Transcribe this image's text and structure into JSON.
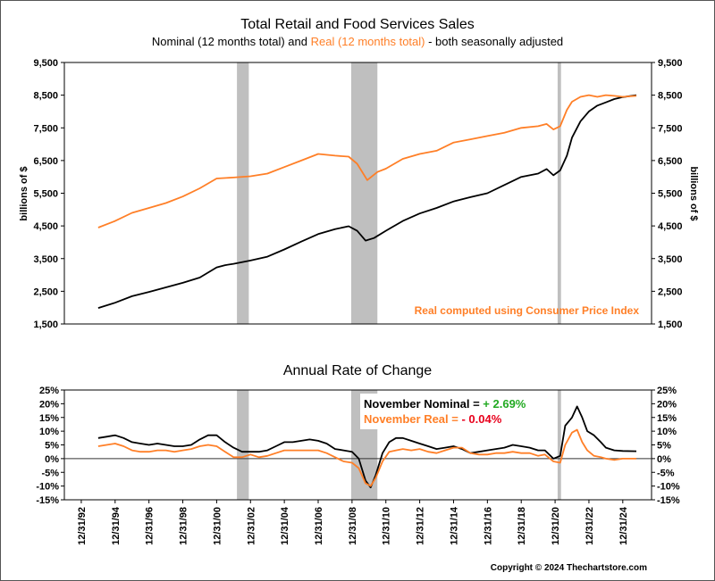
{
  "chart_data": [
    {
      "type": "line",
      "title": "Total Retail and Food Services Sales",
      "subtitle_parts": [
        {
          "text": "Nominal (12 months total) and ",
          "color": "#000000"
        },
        {
          "text": "Real (12 months total)",
          "color": "#ff7f27"
        },
        {
          "text": " - both seasonally adjusted",
          "color": "#000000"
        }
      ],
      "ylabel_left": "billions of $",
      "ylabel_right": "billions of $",
      "ylim": [
        1500,
        9500
      ],
      "yticks": [
        1500,
        2500,
        3500,
        4500,
        5500,
        6500,
        7500,
        8500,
        9500
      ],
      "ytick_labels": [
        "1,500",
        "2,500",
        "3,500",
        "4,500",
        "5,500",
        "6,500",
        "7,500",
        "8,500",
        "9,500"
      ],
      "annotation": "Real computed using Consumer Price Index",
      "grid": false,
      "series": [
        {
          "key": "nominal",
          "color": "#000000",
          "x": [
            1993.0,
            1994.0,
            1995.0,
            1996.0,
            1997.0,
            1998.0,
            1999.0,
            2000.0,
            2000.5,
            2001.0,
            2002.0,
            2003.0,
            2004.0,
            2005.0,
            2006.0,
            2007.0,
            2007.8,
            2008.3,
            2008.8,
            2009.3,
            2010.0,
            2011.0,
            2012.0,
            2013.0,
            2014.0,
            2015.0,
            2016.0,
            2017.0,
            2018.0,
            2019.0,
            2019.5,
            2019.9,
            2020.3,
            2020.7,
            2021.0,
            2021.5,
            2022.0,
            2022.5,
            2023.0,
            2023.5,
            2024.0,
            2024.8
          ],
          "y": [
            1990,
            2150,
            2350,
            2480,
            2620,
            2760,
            2920,
            3230,
            3300,
            3340,
            3440,
            3560,
            3780,
            4020,
            4250,
            4400,
            4490,
            4350,
            4050,
            4130,
            4350,
            4650,
            4880,
            5050,
            5250,
            5380,
            5500,
            5750,
            6000,
            6100,
            6240,
            6050,
            6200,
            6650,
            7200,
            7700,
            8000,
            8180,
            8280,
            8380,
            8440,
            8500
          ]
        },
        {
          "key": "real",
          "color": "#ff7f27",
          "x": [
            1993.0,
            1994.0,
            1995.0,
            1996.0,
            1997.0,
            1998.0,
            1999.0,
            2000.0,
            2001.0,
            2002.0,
            2003.0,
            2004.0,
            2005.0,
            2006.0,
            2007.0,
            2007.8,
            2008.3,
            2008.9,
            2009.5,
            2010.0,
            2011.0,
            2012.0,
            2013.0,
            2014.0,
            2015.0,
            2016.0,
            2017.0,
            2018.0,
            2019.0,
            2019.5,
            2019.9,
            2020.3,
            2020.7,
            2021.0,
            2021.5,
            2022.0,
            2022.5,
            2023.0,
            2023.5,
            2024.0,
            2024.8
          ],
          "y": [
            4450,
            4650,
            4900,
            5050,
            5200,
            5400,
            5650,
            5950,
            5980,
            6020,
            6100,
            6300,
            6500,
            6700,
            6650,
            6620,
            6400,
            5900,
            6150,
            6250,
            6550,
            6700,
            6800,
            7050,
            7150,
            7250,
            7350,
            7500,
            7550,
            7620,
            7450,
            7550,
            8050,
            8300,
            8450,
            8500,
            8450,
            8500,
            8480,
            8450,
            8480
          ]
        }
      ]
    },
    {
      "type": "line",
      "title": "Annual Rate of Change",
      "ylim": [
        -15,
        25
      ],
      "yticks": [
        -15,
        -10,
        -5,
        0,
        5,
        10,
        15,
        20,
        25
      ],
      "ytick_labels": [
        "-15%",
        "-10%",
        "-5%",
        "0%",
        "5%",
        "10%",
        "15%",
        "20%",
        "25%"
      ],
      "xticks": [
        1992,
        1994,
        1996,
        1998,
        2000,
        2002,
        2004,
        2006,
        2008,
        2010,
        2012,
        2014,
        2016,
        2018,
        2020,
        2022,
        2024
      ],
      "xtick_labels": [
        "12/31/92",
        "12/31/94",
        "12/31/96",
        "12/31/98",
        "12/31/00",
        "12/31/02",
        "12/31/04",
        "12/31/06",
        "12/31/08",
        "12/31/10",
        "12/31/12",
        "12/31/14",
        "12/31/16",
        "12/31/18",
        "12/31/20",
        "12/31/22",
        "12/31/24"
      ],
      "legend": {
        "nominal_label": "November Nominal = ",
        "nominal_value": "+ 2.69%",
        "real_label": "November Real = ",
        "real_value": "- 0.04%",
        "nominal_value_color": "#22aa22",
        "real_value_color": "#e8001c"
      },
      "series": [
        {
          "key": "nominal",
          "color": "#000000",
          "x": [
            1993.0,
            1993.5,
            1994.0,
            1994.5,
            1995.0,
            1995.5,
            1996.0,
            1996.5,
            1997.0,
            1997.5,
            1998.0,
            1998.5,
            1999.0,
            1999.5,
            2000.0,
            2000.5,
            2001.0,
            2001.5,
            2002.0,
            2002.5,
            2003.0,
            2003.5,
            2004.0,
            2004.5,
            2005.0,
            2005.5,
            2006.0,
            2006.5,
            2007.0,
            2007.5,
            2008.0,
            2008.4,
            2008.8,
            2009.1,
            2009.4,
            2009.8,
            2010.2,
            2010.6,
            2011.0,
            2011.5,
            2012.0,
            2012.5,
            2013.0,
            2013.5,
            2014.0,
            2014.5,
            2015.0,
            2015.5,
            2016.0,
            2016.5,
            2017.0,
            2017.5,
            2018.0,
            2018.5,
            2019.0,
            2019.4,
            2019.9,
            2020.3,
            2020.6,
            2021.0,
            2021.3,
            2021.6,
            2021.9,
            2022.3,
            2022.7,
            2023.0,
            2023.5,
            2024.0,
            2024.8
          ],
          "y": [
            7.5,
            8.0,
            8.5,
            7.5,
            6.0,
            5.5,
            5.0,
            5.5,
            5.0,
            4.5,
            4.5,
            5.0,
            7.0,
            8.5,
            8.5,
            6.0,
            4.0,
            2.5,
            2.5,
            2.5,
            3.0,
            4.5,
            6.0,
            6.0,
            6.5,
            7.0,
            6.5,
            5.5,
            3.5,
            3.0,
            2.5,
            0.0,
            -8.0,
            -10.5,
            -6.0,
            2.0,
            6.0,
            7.5,
            7.5,
            6.5,
            5.5,
            4.5,
            3.5,
            4.0,
            4.5,
            3.5,
            2.0,
            2.5,
            3.0,
            3.5,
            4.0,
            5.0,
            4.5,
            4.0,
            3.0,
            3.0,
            0.0,
            1.0,
            12.0,
            15.0,
            19.0,
            15.0,
            10.0,
            8.5,
            6.0,
            4.0,
            3.0,
            2.8,
            2.7
          ]
        },
        {
          "key": "real",
          "color": "#ff7f27",
          "x": [
            1993.0,
            1993.5,
            1994.0,
            1994.5,
            1995.0,
            1995.5,
            1996.0,
            1996.5,
            1997.0,
            1997.5,
            1998.0,
            1998.5,
            1999.0,
            1999.5,
            2000.0,
            2000.5,
            2001.0,
            2001.5,
            2002.0,
            2002.5,
            2003.0,
            2003.5,
            2004.0,
            2004.5,
            2005.0,
            2005.5,
            2006.0,
            2006.5,
            2007.0,
            2007.5,
            2008.0,
            2008.4,
            2008.8,
            2009.1,
            2009.4,
            2009.8,
            2010.2,
            2010.6,
            2011.0,
            2011.5,
            2012.0,
            2012.5,
            2013.0,
            2013.5,
            2014.0,
            2014.5,
            2015.0,
            2015.5,
            2016.0,
            2016.5,
            2017.0,
            2017.5,
            2018.0,
            2018.5,
            2019.0,
            2019.4,
            2019.9,
            2020.3,
            2020.6,
            2021.0,
            2021.3,
            2021.6,
            2021.9,
            2022.3,
            2022.7,
            2023.0,
            2023.5,
            2024.0,
            2024.8
          ],
          "y": [
            4.5,
            5.0,
            5.5,
            4.5,
            3.0,
            2.5,
            2.5,
            3.0,
            3.0,
            2.5,
            3.0,
            3.5,
            4.5,
            5.0,
            4.5,
            2.5,
            0.5,
            0.5,
            1.5,
            0.5,
            1.0,
            2.0,
            3.0,
            3.0,
            3.0,
            3.0,
            3.0,
            2.0,
            0.5,
            -1.0,
            -1.5,
            -3.5,
            -9.0,
            -10.0,
            -7.0,
            -1.0,
            2.5,
            3.0,
            3.5,
            3.0,
            3.5,
            2.5,
            2.0,
            3.0,
            4.0,
            4.0,
            2.0,
            1.5,
            1.5,
            2.0,
            2.0,
            2.5,
            2.0,
            2.0,
            1.0,
            1.5,
            -1.0,
            -1.5,
            5.0,
            9.5,
            10.5,
            6.0,
            3.0,
            1.0,
            0.5,
            0.0,
            -0.5,
            0.0,
            0.0
          ]
        }
      ]
    }
  ],
  "recessions": [
    [
      2001.2,
      2001.9
    ],
    [
      2007.95,
      2009.5
    ],
    [
      2020.15,
      2020.35
    ]
  ],
  "copyright": "Copyright © 2024 Thechartstore.com"
}
